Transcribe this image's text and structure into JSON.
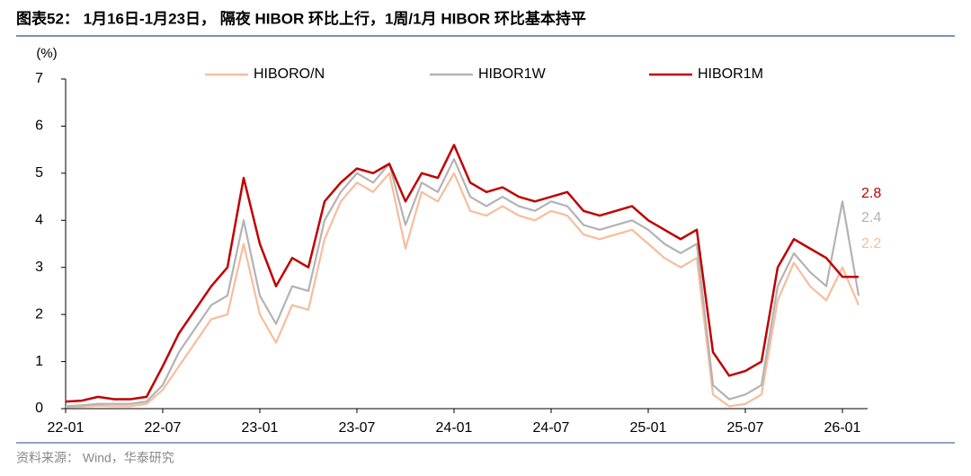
{
  "chart_data": {
    "type": "line",
    "title": "图表52： 1月16日-1月23日， 隔夜 HIBOR 环比上行，1周/1月 HIBOR 环比基本持平",
    "y_label": "(%)",
    "source": "资料来源： Wind，华泰研究",
    "categories": [
      "22-01",
      null,
      null,
      null,
      null,
      null,
      "22-07",
      null,
      null,
      null,
      null,
      null,
      "23-01",
      null,
      null,
      null,
      null,
      null,
      "23-07",
      null,
      null,
      null,
      null,
      null,
      "24-01",
      null,
      null,
      null,
      null,
      null,
      "24-07",
      null,
      null,
      null,
      null,
      null,
      "25-01",
      null,
      null,
      null,
      null,
      null,
      "25-07",
      null,
      null,
      null,
      null,
      null,
      "26-01",
      null
    ],
    "ylim": [
      0,
      7
    ],
    "yticks": [
      0,
      1,
      2,
      3,
      4,
      5,
      6,
      7
    ],
    "legend": "top",
    "series": [
      {
        "name": "HIBORO/N",
        "color": "#f7bd9c",
        "values": [
          0.03,
          0.04,
          0.06,
          0.05,
          0.05,
          0.1,
          0.4,
          0.9,
          1.4,
          1.9,
          2.0,
          3.5,
          2.0,
          1.4,
          2.2,
          2.1,
          3.6,
          4.4,
          4.8,
          4.6,
          5.0,
          3.4,
          4.6,
          4.4,
          5.0,
          4.2,
          4.1,
          4.3,
          4.1,
          4.0,
          4.2,
          4.1,
          3.7,
          3.6,
          3.7,
          3.8,
          3.5,
          3.2,
          3.0,
          3.2,
          0.3,
          0.05,
          0.1,
          0.3,
          2.3,
          3.1,
          2.6,
          2.3,
          3.0,
          2.2
        ]
      },
      {
        "name": "HIBOR1W",
        "color": "#b3b3b3",
        "values": [
          0.05,
          0.07,
          0.1,
          0.1,
          0.1,
          0.15,
          0.5,
          1.2,
          1.7,
          2.2,
          2.4,
          4.0,
          2.4,
          1.8,
          2.6,
          2.5,
          4.0,
          4.6,
          5.0,
          4.8,
          5.2,
          3.9,
          4.8,
          4.6,
          5.3,
          4.5,
          4.3,
          4.5,
          4.3,
          4.2,
          4.4,
          4.3,
          3.9,
          3.8,
          3.9,
          4.0,
          3.8,
          3.5,
          3.3,
          3.5,
          0.5,
          0.2,
          0.3,
          0.5,
          2.6,
          3.3,
          2.9,
          2.6,
          4.4,
          2.4
        ]
      },
      {
        "name": "HIBOR1M",
        "color": "#c00000",
        "values": [
          0.15,
          0.17,
          0.25,
          0.2,
          0.2,
          0.25,
          0.9,
          1.6,
          2.1,
          2.6,
          3.0,
          4.9,
          3.5,
          2.6,
          3.2,
          3.0,
          4.4,
          4.8,
          5.1,
          5.0,
          5.2,
          4.4,
          5.0,
          4.9,
          5.6,
          4.8,
          4.6,
          4.7,
          4.5,
          4.4,
          4.5,
          4.6,
          4.2,
          4.1,
          4.2,
          4.3,
          4.0,
          3.8,
          3.6,
          3.8,
          1.2,
          0.7,
          0.8,
          1.0,
          3.0,
          3.6,
          3.4,
          3.2,
          2.8,
          2.8
        ]
      }
    ]
  }
}
